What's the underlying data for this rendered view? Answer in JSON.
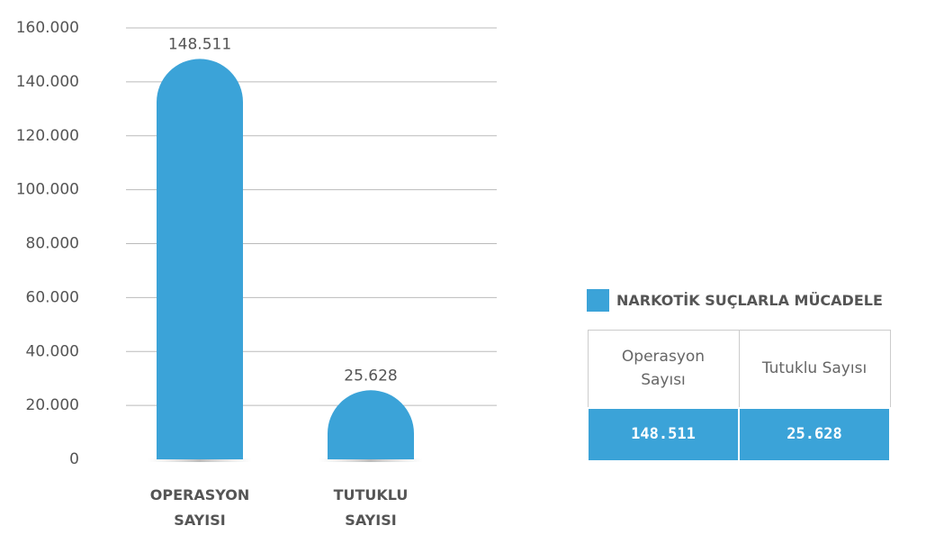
{
  "chart_data": {
    "type": "bar",
    "categories": [
      "OPERASYON SAYISI",
      "TUTUKLU SAYISI"
    ],
    "series": [
      {
        "name": "NARKOTİK SUÇLARLA MÜCADELE",
        "color": "#3ba3d8",
        "values": [
          148511,
          25628
        ],
        "value_labels": [
          "148.511",
          "25.628"
        ]
      }
    ],
    "ylim": [
      0,
      160000
    ],
    "yticks": [
      0,
      {
        "value": 20000,
        "label": "20.000"
      },
      {
        "value": 40000,
        "label": "40.000"
      },
      {
        "value": 60000,
        "label": "60.000"
      },
      {
        "value": 80000,
        "label": "80.000"
      },
      {
        "value": 100000,
        "label": "100.000"
      },
      {
        "value": 120000,
        "label": "120.000"
      },
      {
        "value": 140000,
        "label": "140.000"
      },
      {
        "value": 160000,
        "label": "160.000"
      }
    ],
    "grid": true
  },
  "table": {
    "headers": [
      "Operasyon Sayısı",
      "Tutuklu Sayısı"
    ],
    "rows": [
      [
        "148.511",
        "25.628"
      ]
    ]
  }
}
